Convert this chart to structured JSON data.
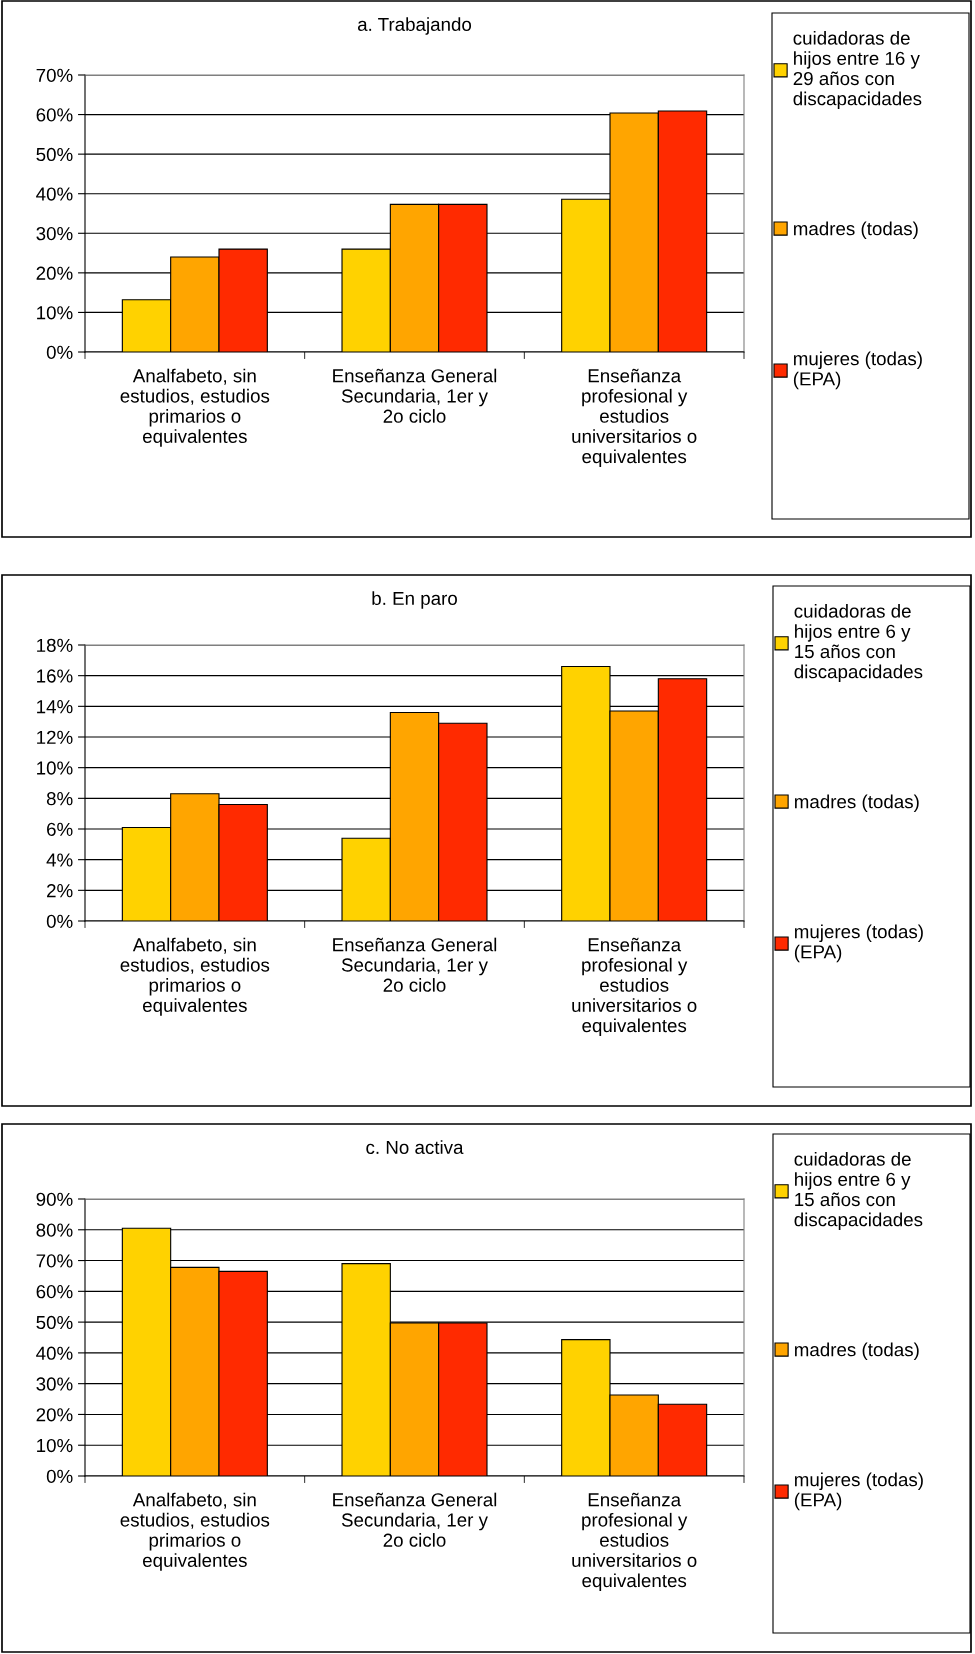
{
  "chart_data": [
    {
      "type": "bar",
      "title": "a. Trabajando",
      "categories": [
        "Analfabeto, sin\nestudios, estudios\nprimarios o\nequivalentes",
        "Enseñanza General\nSecundaria, 1er y\n2o ciclo",
        "Enseñanza\nprofesional y\nestudios\nuniversitarios o\nequivalentes"
      ],
      "series": [
        {
          "name": "cuidadoras de\nhijos entre 16 y\n29 años con\ndiscapacidades",
          "color": "#ffd200",
          "values": [
            13.2,
            26.0,
            38.6
          ]
        },
        {
          "name": "madres (todas)",
          "color": "#ffa500",
          "values": [
            24.0,
            37.3,
            60.4
          ]
        },
        {
          "name": "mujeres (todas)\n(EPA)",
          "color": "#ff2a00",
          "values": [
            26.0,
            37.3,
            60.9
          ]
        }
      ],
      "ylim": [
        0,
        70
      ],
      "yticks": [
        {
          "value": 0,
          "label": "0%"
        },
        {
          "value": 10,
          "label": "10%"
        },
        {
          "value": 20,
          "label": "20%"
        },
        {
          "value": 30,
          "label": "30%"
        },
        {
          "value": 40,
          "label": "40%"
        },
        {
          "value": 50,
          "label": "50%"
        },
        {
          "value": 60,
          "label": "60%"
        },
        {
          "value": 70,
          "label": "70%"
        }
      ],
      "grid": "y",
      "legend": "right"
    },
    {
      "type": "bar",
      "title": "b. En paro",
      "categories": [
        "Analfabeto, sin\nestudios, estudios\nprimarios o\nequivalentes",
        "Enseñanza General\nSecundaria, 1er y\n2o ciclo",
        "Enseñanza\nprofesional y\nestudios\nuniversitarios o\nequivalentes"
      ],
      "series": [
        {
          "name": "cuidadoras de\nhijos entre 6 y\n15 años con\ndiscapacidades",
          "color": "#ffd200",
          "values": [
            6.1,
            5.4,
            16.6
          ]
        },
        {
          "name": "madres (todas)",
          "color": "#ffa500",
          "values": [
            8.3,
            13.6,
            13.7
          ]
        },
        {
          "name": "mujeres (todas)\n(EPA)",
          "color": "#ff2a00",
          "values": [
            7.6,
            12.9,
            15.8
          ]
        }
      ],
      "ylim": [
        0,
        18
      ],
      "yticks": [
        {
          "value": 0,
          "label": "0%"
        },
        {
          "value": 2,
          "label": "2%"
        },
        {
          "value": 4,
          "label": "4%"
        },
        {
          "value": 6,
          "label": "6%"
        },
        {
          "value": 8,
          "label": "8%"
        },
        {
          "value": 10,
          "label": "10%"
        },
        {
          "value": 12,
          "label": "12%"
        },
        {
          "value": 14,
          "label": "14%"
        },
        {
          "value": 16,
          "label": "16%"
        },
        {
          "value": 18,
          "label": "18%"
        }
      ],
      "grid": "y",
      "legend": "right"
    },
    {
      "type": "bar",
      "title": "c. No activa",
      "categories": [
        "Analfabeto, sin\nestudios, estudios\nprimarios o\nequivalentes",
        "Enseñanza General\nSecundaria, 1er y\n2o ciclo",
        "Enseñanza\nprofesional y\nestudios\nuniversitarios o\nequivalentes"
      ],
      "series": [
        {
          "name": "cuidadoras de\nhijos entre 6 y\n15 años con\ndiscapacidades",
          "color": "#ffd200",
          "values": [
            80.5,
            69.0,
            44.3
          ]
        },
        {
          "name": "madres (todas)",
          "color": "#ffa500",
          "values": [
            67.8,
            49.7,
            26.3
          ]
        },
        {
          "name": "mujeres (todas)\n(EPA)",
          "color": "#ff2a00",
          "values": [
            66.5,
            49.7,
            23.3
          ]
        }
      ],
      "ylim": [
        0,
        90
      ],
      "yticks": [
        {
          "value": 0,
          "label": "0%"
        },
        {
          "value": 10,
          "label": "10%"
        },
        {
          "value": 20,
          "label": "20%"
        },
        {
          "value": 30,
          "label": "30%"
        },
        {
          "value": 40,
          "label": "40%"
        },
        {
          "value": 50,
          "label": "50%"
        },
        {
          "value": 60,
          "label": "60%"
        },
        {
          "value": 70,
          "label": "70%"
        },
        {
          "value": 80,
          "label": "80%"
        },
        {
          "value": 90,
          "label": "90%"
        }
      ],
      "grid": "y",
      "legend": "right"
    }
  ]
}
